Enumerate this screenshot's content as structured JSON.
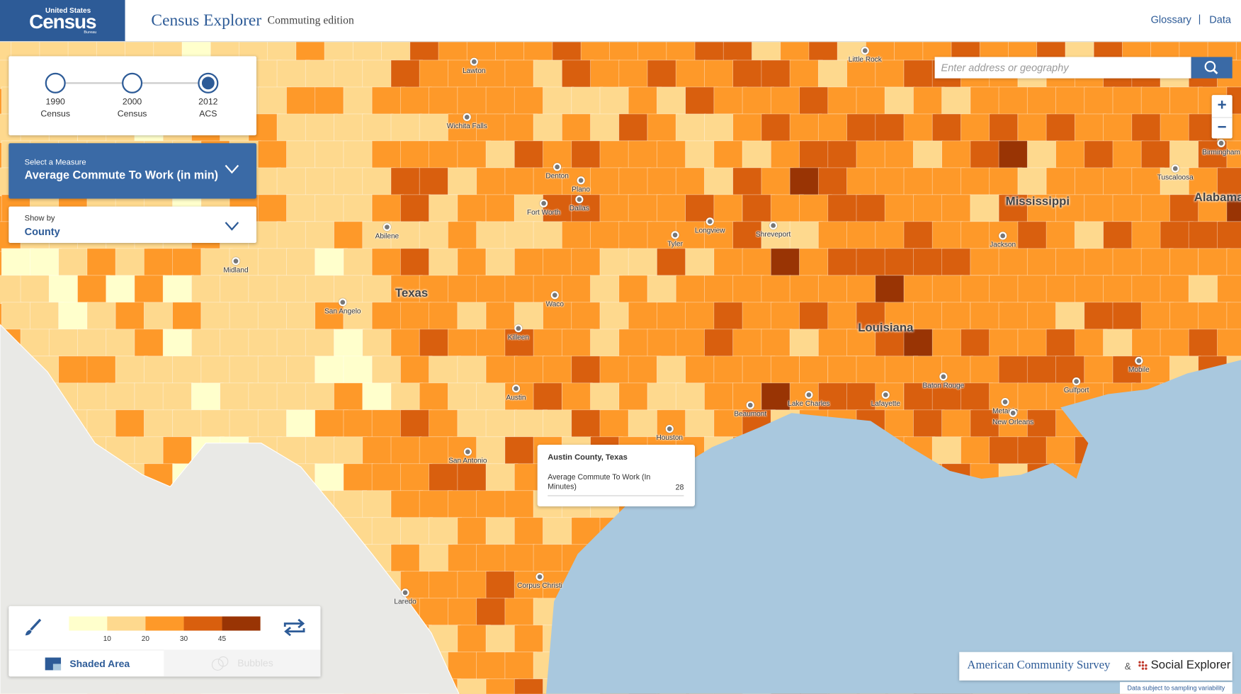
{
  "header": {
    "logo_top": "United States",
    "logo_main": "Census",
    "logo_sub": "Bureau",
    "title": "Census Explorer",
    "edition": "Commuting edition",
    "nav": [
      "Glossary",
      "Data"
    ]
  },
  "timeline": [
    {
      "year": "1990",
      "label": "Census",
      "selected": false
    },
    {
      "year": "2000",
      "label": "Census",
      "selected": false
    },
    {
      "year": "2012",
      "label": "ACS",
      "selected": true
    }
  ],
  "measure": {
    "label": "Select a Measure",
    "value": "Average Commute To Work (in min)"
  },
  "show_by": {
    "label": "Show by",
    "value": "County"
  },
  "search": {
    "placeholder": "Enter address or geography"
  },
  "map": {
    "states": [
      "Texas",
      "Louisiana",
      "Mississippi",
      "Alabama"
    ],
    "cities": [
      "Lawton",
      "Wichita Falls",
      "Little Rock",
      "Denton",
      "Plano",
      "Dallas",
      "Fort Worth",
      "Longview",
      "Tyler",
      "Shreveport",
      "Abilene",
      "Midland",
      "Waco",
      "San Angelo",
      "Killeen",
      "Austin",
      "San Antonio",
      "Houston",
      "Beaumont",
      "Lake Charles",
      "Lafayette",
      "Baton Rouge",
      "Metairie",
      "New Orleans",
      "Jackson",
      "Gulfport",
      "Mobile",
      "Tuscaloosa",
      "Birmingham",
      "Corpus Christi",
      "Laredo"
    ]
  },
  "tooltip": {
    "title": "Austin County, Texas",
    "label": "Average Commute To Work (In Minutes)",
    "value": 28
  },
  "legend": {
    "breaks": [
      10,
      20,
      30,
      45
    ],
    "colors": [
      "#ffffcc",
      "#fed98e",
      "#fe9929",
      "#d95f0e",
      "#993404"
    ],
    "tabs": [
      "Shaded Area",
      "Bubbles"
    ]
  },
  "footer": {
    "acs": "American Community Survey",
    "amp": "&",
    "brand": "Social Explorer",
    "note": "Data subject to sampling variability"
  }
}
